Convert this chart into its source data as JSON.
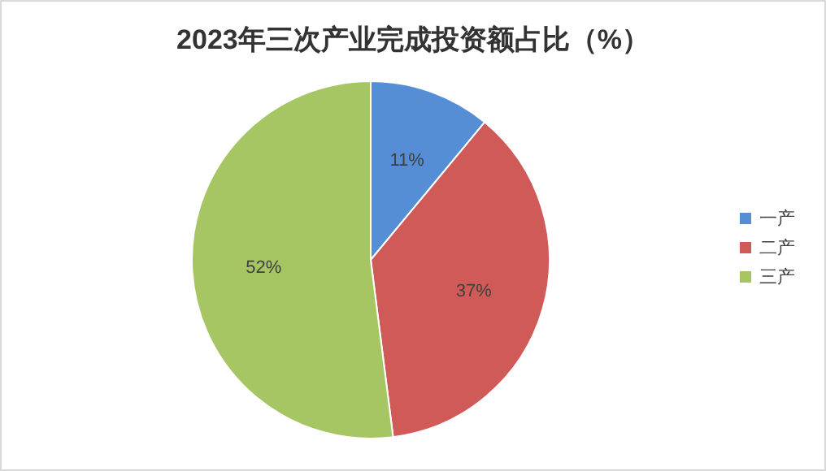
{
  "chart_data": {
    "type": "pie",
    "title": "2023年三次产业完成投资额占比（%）",
    "categories": [
      "一产",
      "二产",
      "三产"
    ],
    "values": [
      11,
      37,
      52
    ],
    "colors": [
      "#558ed5",
      "#d05a57",
      "#a6c563"
    ],
    "value_labels": [
      "11%",
      "37%",
      "52%"
    ],
    "legend": "right"
  }
}
